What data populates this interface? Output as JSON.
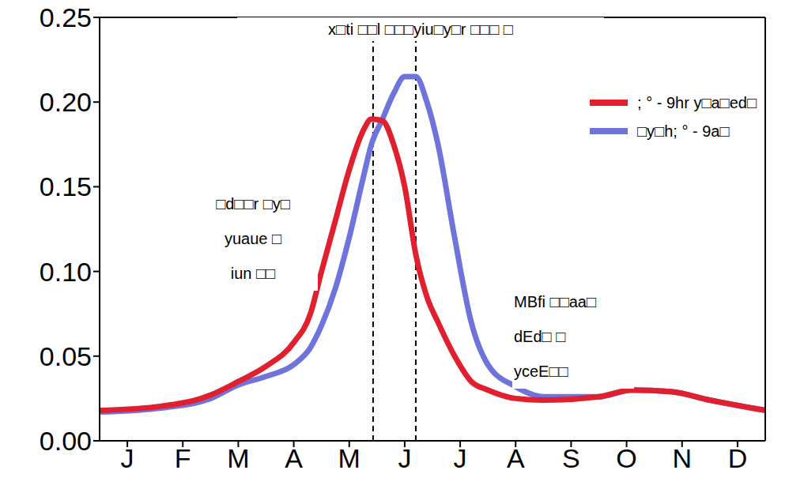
{
  "chart_data": {
    "type": "line",
    "title": "x□ti □□l □□□yiu□y□r □□□ □",
    "annotations": [
      [
        "□d□□r □y□",
        "yuaue □",
        "iun □□"
      ],
      [
        "MBfi □□aa□",
        "dEd□ □",
        "ycеE□□"
      ]
    ],
    "x": [
      0,
      1,
      2,
      2.5,
      3,
      3.5,
      3.8,
      4,
      4.25,
      4.5,
      4.75,
      4.9,
      5.1,
      5.3,
      5.5,
      5.7,
      5.9,
      6.1,
      6.4,
      6.7,
      7,
      7.5,
      8,
      9,
      9.6,
      10.3,
      11,
      12
    ],
    "series": [
      {
        "name": "; ° - 9hr y□a□ed□",
        "color": "#e0202e",
        "values": [
          0.018,
          0.02,
          0.027,
          0.035,
          0.044,
          0.058,
          0.075,
          0.1,
          0.13,
          0.16,
          0.183,
          0.19,
          0.189,
          0.175,
          0.15,
          0.11,
          0.085,
          0.07,
          0.05,
          0.035,
          0.03,
          0.025,
          0.024,
          0.026,
          0.03,
          0.029,
          0.024,
          0.018
        ]
      },
      {
        "name": "□y□h; ° - 9a□",
        "color": "#6f74dc",
        "values": [
          0.017,
          0.019,
          0.025,
          0.033,
          0.038,
          0.045,
          0.055,
          0.068,
          0.09,
          0.12,
          0.155,
          0.175,
          0.19,
          0.205,
          0.215,
          0.215,
          0.2,
          0.175,
          0.12,
          0.07,
          0.045,
          0.032,
          0.026,
          0.026,
          0.03,
          0.029,
          0.024,
          0.018
        ]
      }
    ],
    "xlim": [
      0,
      12
    ],
    "xticks": [
      {
        "value": 0.5,
        "label": "J"
      },
      {
        "value": 1.5,
        "label": "F"
      },
      {
        "value": 2.5,
        "label": "M"
      },
      {
        "value": 3.5,
        "label": "A"
      },
      {
        "value": 4.5,
        "label": "M"
      },
      {
        "value": 5.5,
        "label": "J"
      },
      {
        "value": 6.5,
        "label": "J"
      },
      {
        "value": 7.5,
        "label": "A"
      },
      {
        "value": 8.5,
        "label": "S"
      },
      {
        "value": 9.5,
        "label": "O"
      },
      {
        "value": 10.5,
        "label": "N"
      },
      {
        "value": 11.5,
        "label": "D"
      }
    ],
    "ylim": [
      0,
      0.25
    ],
    "yticks": [
      {
        "value": 0,
        "label": "0.00"
      },
      0.05,
      {
        "value": 0.1,
        "label": "0.10"
      },
      0.15,
      {
        "value": 0.2,
        "label": "0.20"
      },
      0.25
    ],
    "reference_lines": [
      4.93,
      5.7
    ],
    "legend": "upper right"
  }
}
